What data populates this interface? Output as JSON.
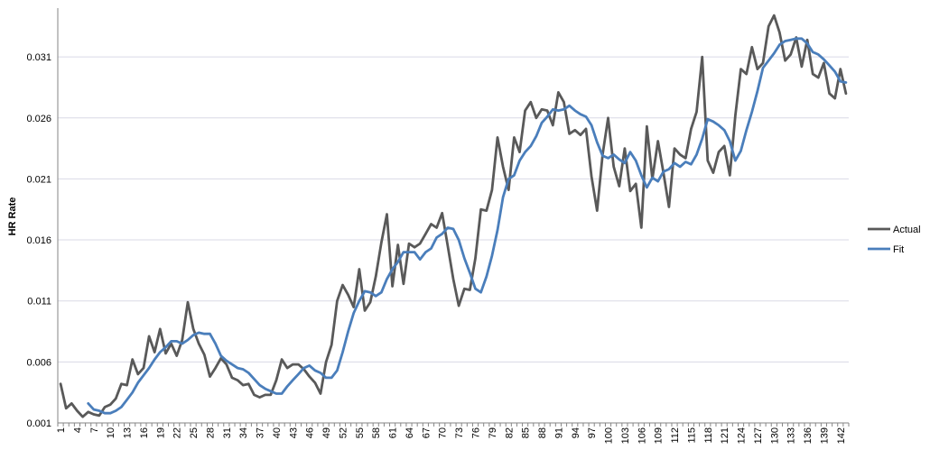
{
  "chart_data": {
    "type": "line",
    "title": "",
    "xlabel": "",
    "ylabel": "HR Rate",
    "ylim": [
      0.001,
      0.035
    ],
    "yticks": [
      0.001,
      0.006,
      0.011,
      0.016,
      0.021,
      0.026,
      0.031
    ],
    "ytick_labels": [
      "0.001",
      "0.006",
      "0.011",
      "0.016",
      "0.021",
      "0.026",
      "0.031"
    ],
    "x_start": 1,
    "x_end": 143,
    "xtick_step": 3,
    "grid": "horizontal",
    "legend": "right",
    "series": [
      {
        "name": "Actual",
        "color": "#595959",
        "start_x": 1,
        "values": [
          0.0042,
          0.0022,
          0.0026,
          0.002,
          0.0015,
          0.0019,
          0.0017,
          0.0016,
          0.0023,
          0.0025,
          0.003,
          0.0042,
          0.0041,
          0.0062,
          0.005,
          0.0055,
          0.0081,
          0.0068,
          0.0087,
          0.0067,
          0.0075,
          0.0065,
          0.0078,
          0.0109,
          0.0087,
          0.0075,
          0.0066,
          0.0048,
          0.0055,
          0.0063,
          0.0058,
          0.0047,
          0.0045,
          0.0041,
          0.0042,
          0.0033,
          0.0031,
          0.0033,
          0.0033,
          0.0045,
          0.0062,
          0.0055,
          0.0058,
          0.0058,
          0.0054,
          0.0048,
          0.0043,
          0.0034,
          0.006,
          0.0074,
          0.011,
          0.0123,
          0.0115,
          0.0105,
          0.0136,
          0.0102,
          0.0109,
          0.013,
          0.0158,
          0.0181,
          0.0122,
          0.0156,
          0.0124,
          0.0157,
          0.0154,
          0.0157,
          0.0165,
          0.0173,
          0.017,
          0.0182,
          0.0155,
          0.0128,
          0.0106,
          0.012,
          0.0119,
          0.0145,
          0.0185,
          0.0184,
          0.0201,
          0.0244,
          0.022,
          0.0201,
          0.0244,
          0.0232,
          0.0266,
          0.0273,
          0.026,
          0.0267,
          0.0266,
          0.0254,
          0.0281,
          0.0273,
          0.0247,
          0.025,
          0.0246,
          0.0251,
          0.0212,
          0.0184,
          0.023,
          0.026,
          0.022,
          0.0204,
          0.0235,
          0.02,
          0.0206,
          0.017,
          0.0253,
          0.021,
          0.0241,
          0.0215,
          0.0187,
          0.0235,
          0.023,
          0.0227,
          0.0251,
          0.0265,
          0.031,
          0.0225,
          0.0215,
          0.0232,
          0.0237,
          0.0213,
          0.0262,
          0.03,
          0.0296,
          0.0318,
          0.03,
          0.0305,
          0.0335,
          0.0344,
          0.033,
          0.0307,
          0.0312,
          0.0326,
          0.0302,
          0.0324,
          0.0296,
          0.0293,
          0.0305,
          0.028,
          0.0276,
          0.03,
          0.028
        ]
      },
      {
        "name": "Fit",
        "color": "#4a7ebb",
        "start_x": 6,
        "values": [
          0.0026,
          0.0021,
          0.002,
          0.0018,
          0.0018,
          0.002,
          0.0023,
          0.0029,
          0.0035,
          0.0043,
          0.0049,
          0.0055,
          0.0062,
          0.0068,
          0.0072,
          0.0077,
          0.0077,
          0.0075,
          0.0078,
          0.0082,
          0.0084,
          0.0083,
          0.0083,
          0.0075,
          0.0065,
          0.0061,
          0.0058,
          0.0055,
          0.0054,
          0.0051,
          0.0046,
          0.0041,
          0.0038,
          0.0036,
          0.0034,
          0.0034,
          0.004,
          0.0045,
          0.005,
          0.0055,
          0.0057,
          0.0053,
          0.0051,
          0.0047,
          0.0047,
          0.0053,
          0.0068,
          0.0085,
          0.01,
          0.011,
          0.0118,
          0.0117,
          0.0114,
          0.0117,
          0.0128,
          0.0136,
          0.0142,
          0.015,
          0.015,
          0.015,
          0.0144,
          0.015,
          0.0153,
          0.0162,
          0.0165,
          0.017,
          0.0169,
          0.016,
          0.0145,
          0.0133,
          0.012,
          0.0117,
          0.013,
          0.0147,
          0.0168,
          0.0195,
          0.021,
          0.0213,
          0.0225,
          0.0232,
          0.0237,
          0.0245,
          0.0256,
          0.0261,
          0.0267,
          0.0266,
          0.0267,
          0.027,
          0.0266,
          0.0263,
          0.0261,
          0.0254,
          0.024,
          0.0229,
          0.0227,
          0.023,
          0.0226,
          0.0223,
          0.0232,
          0.0225,
          0.0213,
          0.0203,
          0.0211,
          0.0208,
          0.0216,
          0.0218,
          0.0223,
          0.022,
          0.0224,
          0.0222,
          0.023,
          0.0243,
          0.0259,
          0.0257,
          0.0254,
          0.025,
          0.0241,
          0.0225,
          0.0233,
          0.025,
          0.0265,
          0.0282,
          0.0301,
          0.0307,
          0.0313,
          0.032,
          0.0323,
          0.0324,
          0.0325,
          0.0325,
          0.0321,
          0.0314,
          0.0312,
          0.0308,
          0.0303,
          0.0298,
          0.029,
          0.0289
        ]
      }
    ]
  }
}
